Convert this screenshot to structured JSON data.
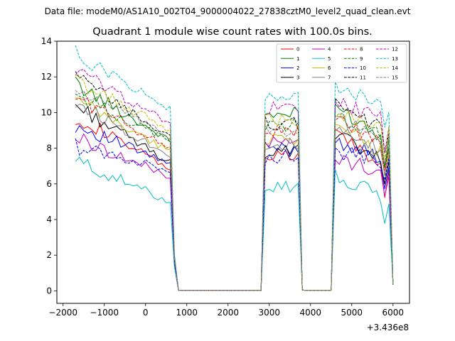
{
  "figure": {
    "suptitle": "Data file: modeM0/AS1A10_002T04_9000004022_27838cztM0_level2_quad_clean.evt"
  },
  "chart_data": {
    "type": "line",
    "title": "Quadrant 1 module wise count rates with 100.0s bins.",
    "xlabel": "",
    "ylabel": "",
    "x_offset_label": "+3.436e8",
    "xlim": [
      -2150,
      6400
    ],
    "ylim": [
      -0.7,
      14
    ],
    "xticks": [
      -2000,
      -1000,
      0,
      1000,
      2000,
      3000,
      4000,
      5000,
      6000
    ],
    "xtick_labels": [
      "−2000",
      "−1000",
      "0",
      "1000",
      "2000",
      "3000",
      "4000",
      "5000",
      "6000"
    ],
    "yticks": [
      0,
      2,
      4,
      6,
      8,
      10,
      12,
      14
    ],
    "ytick_labels": [
      "0",
      "2",
      "4",
      "6",
      "8",
      "10",
      "12",
      "14"
    ],
    "legend_position": "upper right",
    "legend_columns": 4,
    "segments": [
      {
        "x_start": -1700,
        "x_end": 600
      },
      {
        "x_start": 2900,
        "x_end": 3700
      },
      {
        "x_start": 4600,
        "x_end": 5900
      }
    ],
    "series": [
      {
        "name": "0",
        "color": "#ff0000",
        "dash": "solid",
        "seg1_start": 9.8,
        "seg1_end": 6.8,
        "seg2_level": 7.5,
        "seg3_start": 9.0,
        "seg3_end": 6.6
      },
      {
        "name": "1",
        "color": "#008000",
        "dash": "solid",
        "seg1_start": 11.6,
        "seg1_end": 8.4,
        "seg2_level": 9.9,
        "seg3_start": 10.4,
        "seg3_end": 8.4
      },
      {
        "name": "2",
        "color": "#0000ff",
        "dash": "solid",
        "seg1_start": 9.3,
        "seg1_end": 7.1,
        "seg2_level": 8.0,
        "seg3_start": 8.5,
        "seg3_end": 7.2
      },
      {
        "name": "3",
        "color": "#000000",
        "dash": "solid",
        "seg1_start": 10.4,
        "seg1_end": 7.2,
        "seg2_level": 7.8,
        "seg3_start": 8.8,
        "seg3_end": 7.0
      },
      {
        "name": "4",
        "color": "#bf00bf",
        "dash": "solid",
        "seg1_start": 8.6,
        "seg1_end": 6.4,
        "seg2_level": 8.3,
        "seg3_start": 7.4,
        "seg3_end": 6.6
      },
      {
        "name": "5",
        "color": "#00bfbf",
        "dash": "solid",
        "seg1_start": 7.3,
        "seg1_end": 5.0,
        "seg2_level": 5.9,
        "seg3_start": 6.4,
        "seg3_end": 5.1
      },
      {
        "name": "6",
        "color": "#bfbf00",
        "dash": "solid",
        "seg1_start": 10.7,
        "seg1_end": 7.8,
        "seg2_level": 8.6,
        "seg3_start": 9.2,
        "seg3_end": 7.6
      },
      {
        "name": "7",
        "color": "#808080",
        "dash": "solid",
        "seg1_start": 10.6,
        "seg1_end": 7.6,
        "seg2_level": 8.2,
        "seg3_start": 8.9,
        "seg3_end": 7.7
      },
      {
        "name": "8",
        "color": "#ff0000",
        "dash": "dashed",
        "seg1_start": 10.9,
        "seg1_end": 8.0,
        "seg2_level": 9.0,
        "seg3_start": 9.6,
        "seg3_end": 8.0
      },
      {
        "name": "9",
        "color": "#008000",
        "dash": "dashed",
        "seg1_start": 11.0,
        "seg1_end": 8.4,
        "seg2_level": 9.3,
        "seg3_start": 9.8,
        "seg3_end": 8.5
      },
      {
        "name": "10",
        "color": "#0000ff",
        "dash": "dashed",
        "seg1_start": 8.1,
        "seg1_end": 6.8,
        "seg2_level": 7.5,
        "seg3_start": 7.8,
        "seg3_end": 7.2
      },
      {
        "name": "11",
        "color": "#000000",
        "dash": "dashed",
        "seg1_start": 12.0,
        "seg1_end": 8.6,
        "seg2_level": 9.4,
        "seg3_start": 10.6,
        "seg3_end": 8.8
      },
      {
        "name": "12",
        "color": "#bf00bf",
        "dash": "dashed",
        "seg1_start": 12.4,
        "seg1_end": 9.4,
        "seg2_level": 10.2,
        "seg3_start": 10.7,
        "seg3_end": 9.4
      },
      {
        "name": "13",
        "color": "#00bfbf",
        "dash": "dashed",
        "seg1_start": 13.3,
        "seg1_end": 10.2,
        "seg2_level": 10.8,
        "seg3_start": 11.6,
        "seg3_end": 10.0
      },
      {
        "name": "14",
        "color": "#bfbf00",
        "dash": "dashed",
        "seg1_start": 11.8,
        "seg1_end": 9.0,
        "seg2_level": 9.6,
        "seg3_start": 10.0,
        "seg3_end": 9.0
      },
      {
        "name": "15",
        "color": "#808080",
        "dash": "dashed",
        "seg1_start": 11.3,
        "seg1_end": 8.6,
        "seg2_level": 9.0,
        "seg3_start": 9.8,
        "seg3_end": 8.3
      }
    ]
  }
}
